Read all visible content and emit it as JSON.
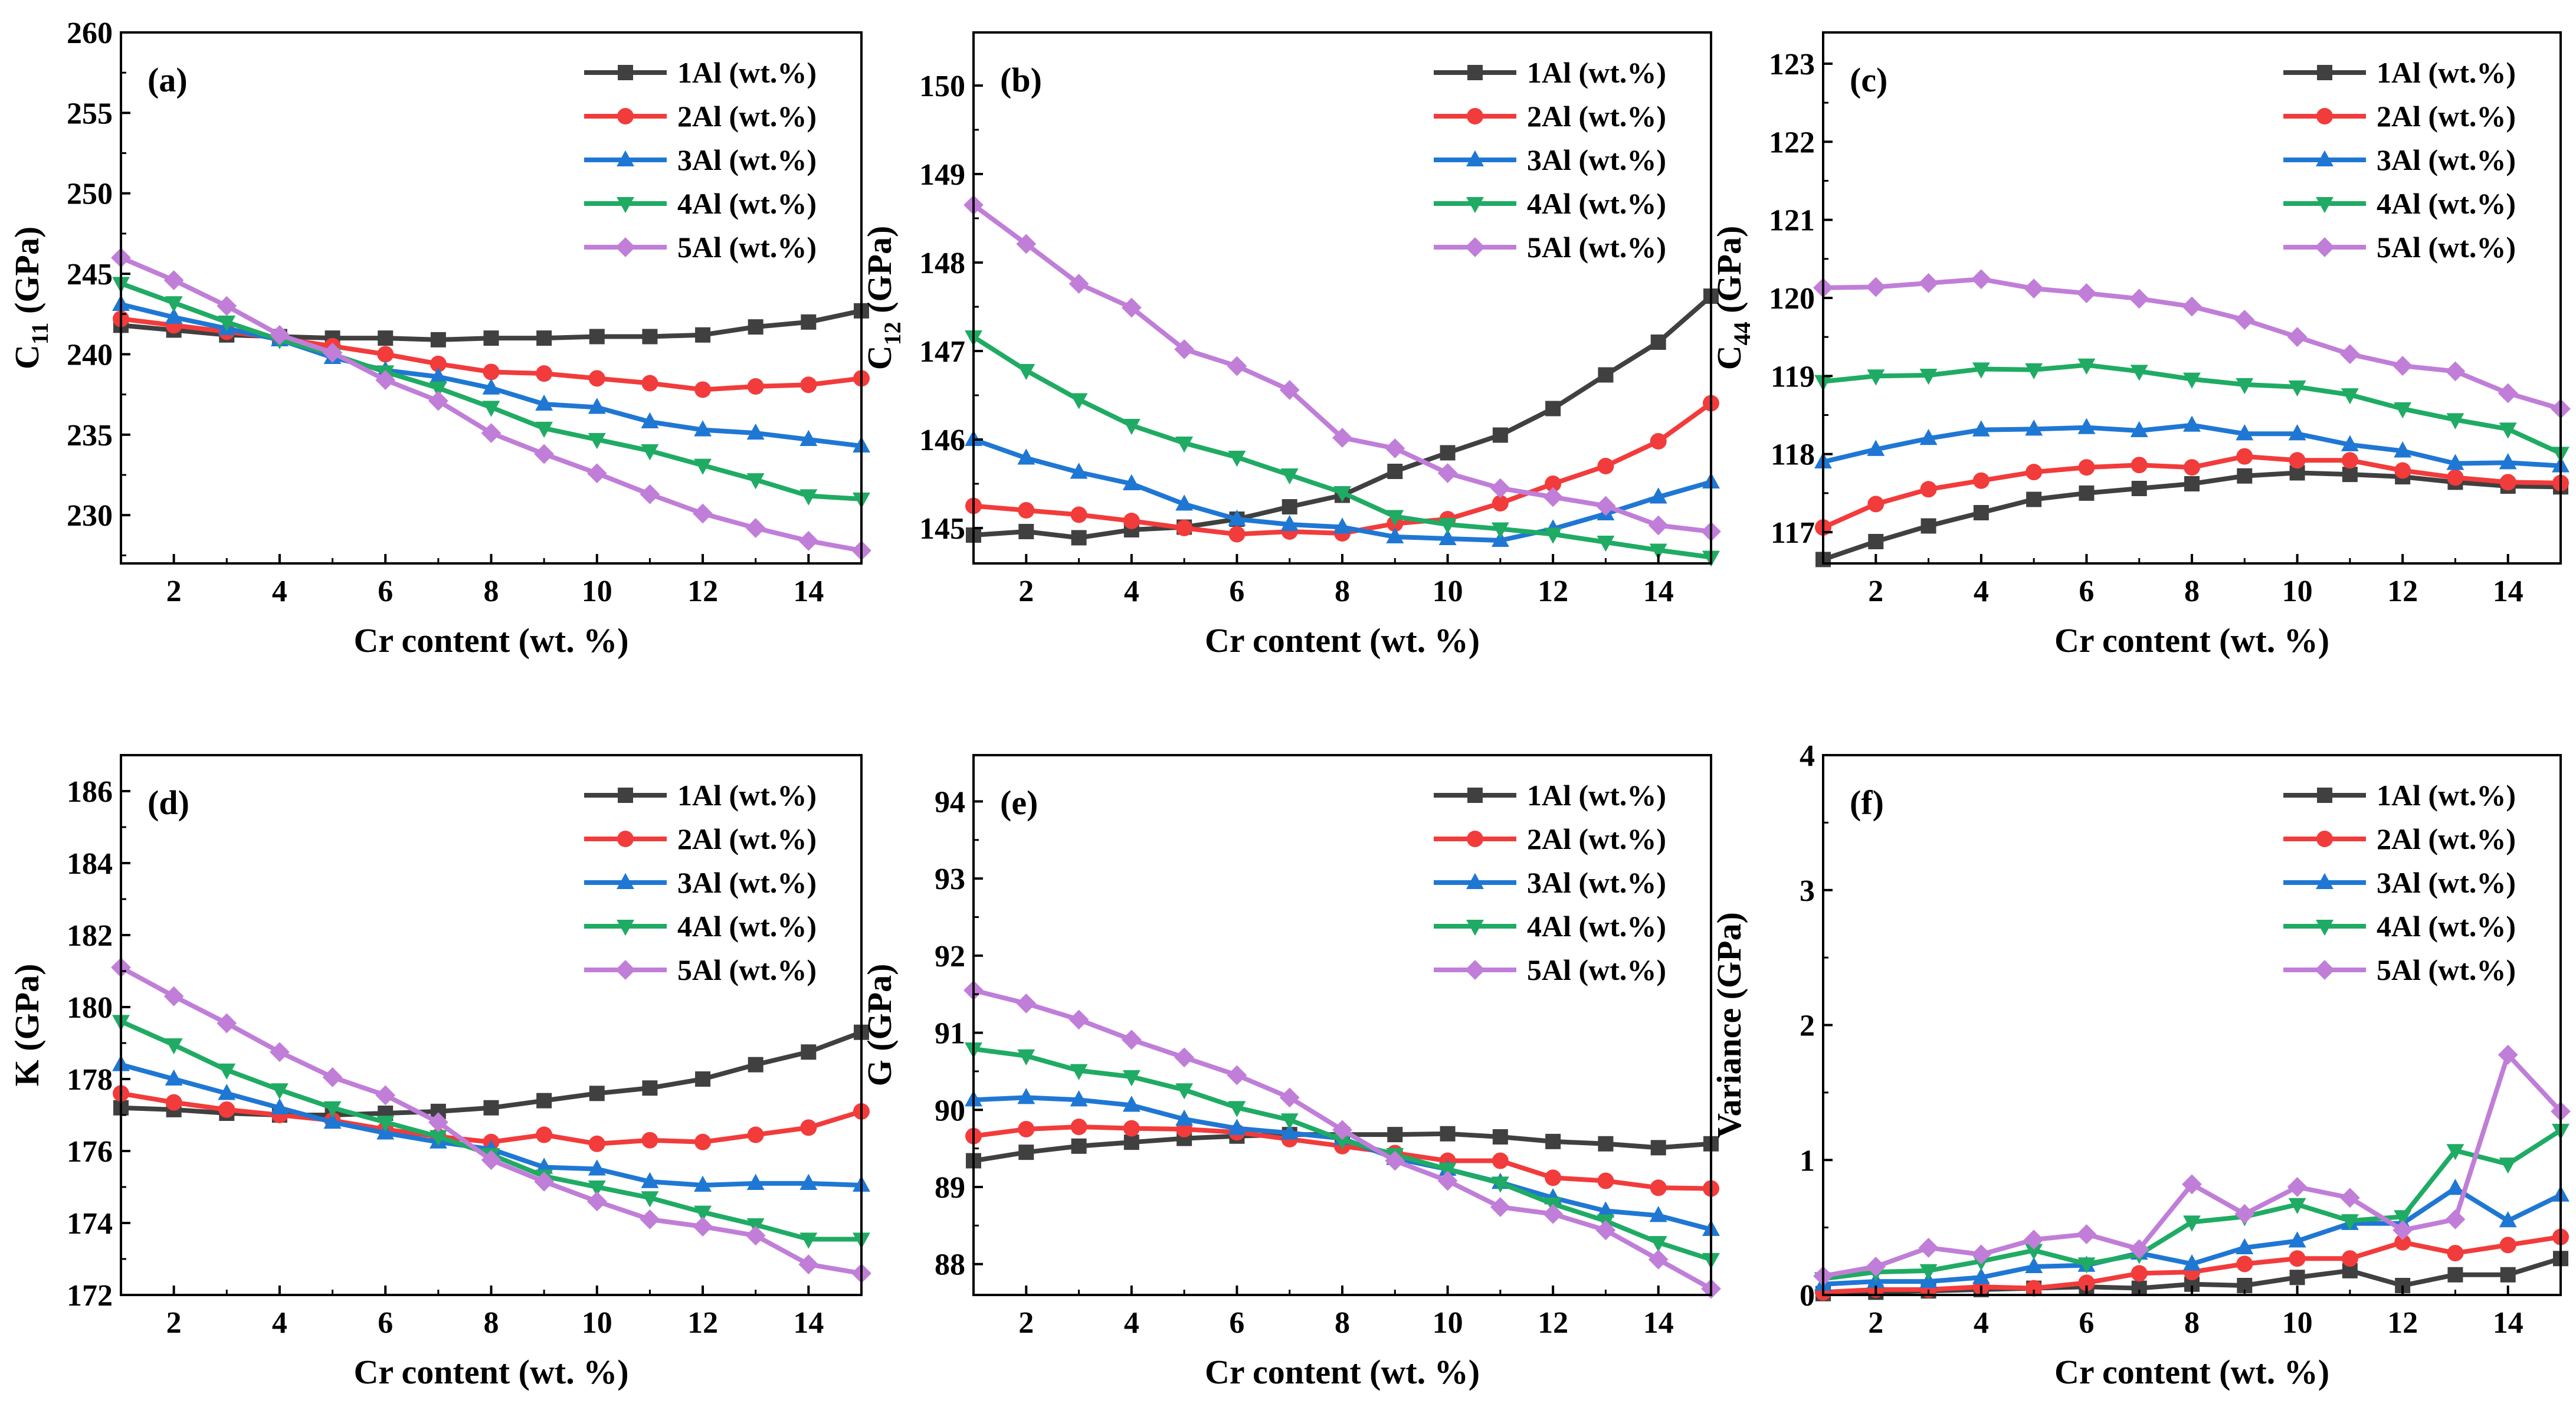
{
  "chart_data": [
    {
      "panel": "(a)",
      "type": "line",
      "ylabel": "C11 (GPa)",
      "ylabel_main": "C",
      "ylabel_sub": "11",
      "ylabel_tail": " (GPa)",
      "xlabel": "Cr content (wt. %)",
      "xlim": [
        1,
        15
      ],
      "xticks": [
        2,
        4,
        6,
        8,
        10,
        12,
        14
      ],
      "ylim": [
        227,
        260
      ],
      "yticks": [
        230,
        235,
        240,
        245,
        250,
        255,
        260
      ],
      "x": [
        1,
        2,
        3,
        4,
        5,
        6,
        7,
        8,
        9,
        10,
        11,
        12,
        13,
        14,
        15
      ],
      "series": [
        {
          "name": "1Al (wt.%)",
          "values": [
            241.8,
            241.5,
            241.2,
            241.1,
            241.0,
            241.0,
            240.9,
            241.0,
            241.0,
            241.1,
            241.1,
            241.2,
            241.7,
            242.0,
            242.7
          ]
        },
        {
          "name": "2Al (wt.%)",
          "values": [
            242.2,
            241.8,
            241.4,
            241.0,
            240.5,
            240.0,
            239.4,
            238.9,
            238.8,
            238.5,
            238.2,
            237.8,
            238.0,
            238.1,
            238.5
          ]
        },
        {
          "name": "3Al (wt.%)",
          "values": [
            243.1,
            242.3,
            241.6,
            240.9,
            239.8,
            239.0,
            238.6,
            237.9,
            236.9,
            236.7,
            235.8,
            235.3,
            235.1,
            234.7,
            234.3
          ]
        },
        {
          "name": "4Al (wt.%)",
          "values": [
            244.4,
            243.2,
            242.0,
            240.9,
            240.0,
            238.9,
            237.9,
            236.7,
            235.4,
            234.7,
            234.0,
            233.1,
            232.2,
            231.2,
            231.0
          ]
        },
        {
          "name": "5Al (wt.%)",
          "values": [
            246.0,
            244.6,
            243.0,
            241.2,
            240.1,
            238.4,
            237.1,
            235.1,
            233.8,
            232.6,
            231.3,
            230.1,
            229.2,
            228.4,
            227.8
          ]
        }
      ]
    },
    {
      "panel": "(b)",
      "type": "line",
      "ylabel": "C12 (GPa)",
      "ylabel_main": "C",
      "ylabel_sub": "12",
      "ylabel_tail": " (GPa)",
      "xlabel": "Cr content (wt. %)",
      "xlim": [
        1,
        15
      ],
      "xticks": [
        2,
        4,
        6,
        8,
        10,
        12,
        14
      ],
      "ylim": [
        144.6,
        150.6
      ],
      "yticks": [
        145,
        146,
        147,
        148,
        149,
        150
      ],
      "x": [
        1,
        2,
        3,
        4,
        5,
        6,
        7,
        8,
        9,
        10,
        11,
        12,
        13,
        14,
        15
      ],
      "series": [
        {
          "name": "1Al (wt.%)",
          "values": [
            144.92,
            144.96,
            144.89,
            144.98,
            145.01,
            145.1,
            145.24,
            145.37,
            145.64,
            145.85,
            146.05,
            146.35,
            146.73,
            147.1,
            147.62
          ]
        },
        {
          "name": "2Al (wt.%)",
          "values": [
            145.25,
            145.2,
            145.15,
            145.08,
            145.0,
            144.93,
            144.96,
            144.94,
            145.05,
            145.1,
            145.28,
            145.5,
            145.7,
            145.98,
            146.41
          ]
        },
        {
          "name": "3Al (wt.%)",
          "values": [
            146.0,
            145.79,
            145.63,
            145.5,
            145.27,
            145.1,
            145.04,
            145.01,
            144.9,
            144.88,
            144.86,
            144.99,
            145.16,
            145.35,
            145.52
          ]
        },
        {
          "name": "4Al (wt.%)",
          "values": [
            147.16,
            146.78,
            146.45,
            146.16,
            145.96,
            145.8,
            145.6,
            145.4,
            145.13,
            145.04,
            144.99,
            144.93,
            144.84,
            144.75,
            144.67
          ]
        },
        {
          "name": "5Al (wt.%)",
          "values": [
            148.65,
            148.21,
            147.76,
            147.49,
            147.02,
            146.83,
            146.56,
            146.02,
            145.9,
            145.62,
            145.45,
            145.35,
            145.25,
            145.03,
            144.96
          ]
        }
      ]
    },
    {
      "panel": "(c)",
      "type": "line",
      "ylabel": "C44 (GPa)",
      "ylabel_main": "C",
      "ylabel_sub": "44",
      "ylabel_tail": " (GPa)",
      "xlabel": "Cr content (wt. %)",
      "xlim": [
        1,
        15
      ],
      "xticks": [
        2,
        4,
        6,
        8,
        10,
        12,
        14
      ],
      "ylim": [
        116.6,
        123.4
      ],
      "yticks": [
        117,
        118,
        119,
        120,
        121,
        122,
        123
      ],
      "x": [
        1,
        2,
        3,
        4,
        5,
        6,
        7,
        8,
        9,
        10,
        11,
        12,
        13,
        14,
        15
      ],
      "series": [
        {
          "name": "1Al (wt.%)",
          "values": [
            116.65,
            116.88,
            117.08,
            117.25,
            117.42,
            117.5,
            117.56,
            117.62,
            117.72,
            117.76,
            117.74,
            117.71,
            117.64,
            117.59,
            117.58
          ]
        },
        {
          "name": "2Al (wt.%)",
          "values": [
            117.06,
            117.36,
            117.55,
            117.66,
            117.77,
            117.83,
            117.86,
            117.83,
            117.97,
            117.92,
            117.92,
            117.79,
            117.7,
            117.64,
            117.63
          ]
        },
        {
          "name": "3Al (wt.%)",
          "values": [
            117.9,
            118.06,
            118.2,
            118.31,
            118.32,
            118.34,
            118.3,
            118.37,
            118.26,
            118.26,
            118.12,
            118.04,
            117.88,
            117.89,
            117.85
          ]
        },
        {
          "name": "4Al (wt.%)",
          "values": [
            118.93,
            119.0,
            119.01,
            119.09,
            119.08,
            119.14,
            119.06,
            118.96,
            118.89,
            118.86,
            118.76,
            118.58,
            118.44,
            118.32,
            118.01
          ]
        },
        {
          "name": "5Al (wt.%)",
          "values": [
            120.13,
            120.14,
            120.19,
            120.24,
            120.12,
            120.06,
            119.99,
            119.89,
            119.72,
            119.5,
            119.28,
            119.13,
            119.06,
            118.78,
            118.58
          ]
        }
      ]
    },
    {
      "panel": "(d)",
      "type": "line",
      "ylabel": "K (GPa)",
      "ylabel_main": "K (GPa)",
      "ylabel_sub": "",
      "ylabel_tail": "",
      "xlabel": "Cr content (wt. %)",
      "xlim": [
        1,
        15
      ],
      "xticks": [
        2,
        4,
        6,
        8,
        10,
        12,
        14
      ],
      "ylim": [
        172,
        187
      ],
      "yticks": [
        172,
        174,
        176,
        178,
        180,
        182,
        184,
        186
      ],
      "x": [
        1,
        2,
        3,
        4,
        5,
        6,
        7,
        8,
        9,
        10,
        11,
        12,
        13,
        14,
        15
      ],
      "series": [
        {
          "name": "1Al (wt.%)",
          "values": [
            177.2,
            177.15,
            177.05,
            177.0,
            177.0,
            177.05,
            177.1,
            177.2,
            177.4,
            177.6,
            177.75,
            178.0,
            178.4,
            178.75,
            179.3
          ]
        },
        {
          "name": "2Al (wt.%)",
          "values": [
            177.6,
            177.35,
            177.15,
            177.0,
            176.85,
            176.6,
            176.4,
            176.25,
            176.45,
            176.2,
            176.3,
            176.25,
            176.45,
            176.65,
            177.1
          ]
        },
        {
          "name": "3Al (wt.%)",
          "values": [
            178.4,
            178.0,
            177.6,
            177.2,
            176.8,
            176.5,
            176.25,
            176.05,
            175.55,
            175.5,
            175.15,
            175.05,
            175.1,
            175.1,
            175.05
          ]
        },
        {
          "name": "4Al (wt.%)",
          "values": [
            179.6,
            178.95,
            178.25,
            177.7,
            177.2,
            176.8,
            176.4,
            175.9,
            175.3,
            175.0,
            174.7,
            174.3,
            173.95,
            173.55,
            173.55
          ]
        },
        {
          "name": "5Al (wt.%)",
          "values": [
            181.1,
            180.3,
            179.55,
            178.75,
            178.05,
            177.55,
            176.8,
            175.75,
            175.15,
            174.6,
            174.1,
            173.9,
            173.65,
            172.85,
            172.6
          ]
        }
      ]
    },
    {
      "panel": "(e)",
      "type": "line",
      "ylabel": "G (GPa)",
      "ylabel_main": "G (GPa)",
      "ylabel_sub": "",
      "ylabel_tail": "",
      "xlabel": "Cr content (wt. %)",
      "xlim": [
        1,
        15
      ],
      "xticks": [
        2,
        4,
        6,
        8,
        10,
        12,
        14
      ],
      "ylim": [
        87.6,
        94.6
      ],
      "yticks": [
        88,
        89,
        90,
        91,
        92,
        93,
        94
      ],
      "x": [
        1,
        2,
        3,
        4,
        5,
        6,
        7,
        8,
        9,
        10,
        11,
        12,
        13,
        14,
        15
      ],
      "series": [
        {
          "name": "1Al (wt.%)",
          "values": [
            89.34,
            89.45,
            89.53,
            89.58,
            89.63,
            89.66,
            89.68,
            89.68,
            89.68,
            89.69,
            89.65,
            89.59,
            89.56,
            89.51,
            89.56
          ]
        },
        {
          "name": "2Al (wt.%)",
          "values": [
            89.66,
            89.75,
            89.78,
            89.76,
            89.75,
            89.71,
            89.62,
            89.53,
            89.44,
            89.34,
            89.34,
            89.12,
            89.08,
            88.99,
            88.98
          ]
        },
        {
          "name": "3Al (wt.%)",
          "values": [
            90.13,
            90.16,
            90.13,
            90.06,
            89.88,
            89.76,
            89.7,
            89.63,
            89.37,
            89.23,
            89.06,
            88.86,
            88.69,
            88.63,
            88.45
          ]
        },
        {
          "name": "4Al (wt.%)",
          "values": [
            90.79,
            90.7,
            90.51,
            90.43,
            90.26,
            90.03,
            89.87,
            89.61,
            89.42,
            89.23,
            89.05,
            88.78,
            88.56,
            88.28,
            88.06
          ]
        },
        {
          "name": "5Al (wt.%)",
          "values": [
            91.55,
            91.38,
            91.17,
            90.91,
            90.68,
            90.45,
            90.16,
            89.74,
            89.34,
            89.08,
            88.74,
            88.65,
            88.44,
            88.06,
            87.68
          ]
        }
      ]
    },
    {
      "panel": "(f)",
      "type": "line",
      "ylabel": "Variance (GPa)",
      "ylabel_main": "Variance (GPa)",
      "ylabel_sub": "",
      "ylabel_tail": "",
      "xlabel": "Cr content (wt. %)",
      "xlim": [
        1,
        15
      ],
      "xticks": [
        2,
        4,
        6,
        8,
        10,
        12,
        14
      ],
      "ylim": [
        0,
        4
      ],
      "yticks": [
        0,
        1,
        2,
        3,
        4
      ],
      "x": [
        1,
        2,
        3,
        4,
        5,
        6,
        7,
        8,
        9,
        10,
        11,
        12,
        13,
        14,
        15
      ],
      "series": [
        {
          "name": "1Al (wt.%)",
          "values": [
            0.01,
            0.02,
            0.03,
            0.04,
            0.05,
            0.06,
            0.05,
            0.08,
            0.07,
            0.13,
            0.18,
            0.07,
            0.15,
            0.15,
            0.27
          ]
        },
        {
          "name": "2Al (wt.%)",
          "values": [
            0.02,
            0.04,
            0.04,
            0.06,
            0.05,
            0.09,
            0.16,
            0.17,
            0.23,
            0.27,
            0.27,
            0.39,
            0.31,
            0.37,
            0.43
          ]
        },
        {
          "name": "3Al (wt.%)",
          "values": [
            0.08,
            0.1,
            0.1,
            0.13,
            0.21,
            0.22,
            0.31,
            0.23,
            0.35,
            0.4,
            0.53,
            0.53,
            0.79,
            0.55,
            0.74
          ]
        },
        {
          "name": "4Al (wt.%)",
          "values": [
            0.12,
            0.17,
            0.18,
            0.25,
            0.33,
            0.23,
            0.3,
            0.54,
            0.58,
            0.67,
            0.55,
            0.58,
            1.07,
            0.97,
            1.22
          ]
        },
        {
          "name": "5Al (wt.%)",
          "values": [
            0.14,
            0.21,
            0.35,
            0.3,
            0.41,
            0.45,
            0.34,
            0.82,
            0.6,
            0.8,
            0.72,
            0.48,
            0.56,
            1.78,
            1.36
          ]
        }
      ]
    }
  ],
  "series_colors": [
    "#404040",
    "#f23b3b",
    "#1f77d4",
    "#1fab63",
    "#c07ed8"
  ],
  "series_markers": [
    "square",
    "circle",
    "triangle-up",
    "triangle-down",
    "diamond"
  ]
}
